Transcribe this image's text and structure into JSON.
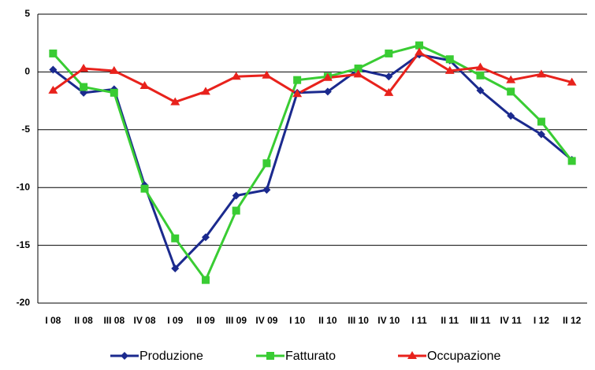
{
  "chart_data": {
    "type": "line",
    "categories": [
      "I 08",
      "II 08",
      "III 08",
      "IV 08",
      "I 09",
      "II 09",
      "III 09",
      "IV 09",
      "I 10",
      "II 10",
      "III 10",
      "IV 10",
      "I 11",
      "II 11",
      "III 11",
      "IV 11",
      "I 12",
      "II 12"
    ],
    "series": [
      {
        "name": "Produzione",
        "color": "#1b2a8e",
        "marker": "diamond",
        "values": [
          0.2,
          -1.8,
          -1.5,
          -9.8,
          -17,
          -14.3,
          -10.7,
          -10.2,
          -1.8,
          -1.7,
          0.2,
          -0.4,
          1.5,
          1.0,
          -1.6,
          -3.8,
          -5.4,
          -7.6
        ]
      },
      {
        "name": "Fatturato",
        "color": "#39cc33",
        "marker": "square",
        "values": [
          1.6,
          -1.3,
          -1.8,
          -10.1,
          -14.4,
          -18,
          -12,
          -7.9,
          -0.7,
          -0.4,
          0.3,
          1.6,
          2.3,
          1.1,
          -0.3,
          -1.7,
          -4.3,
          -7.7
        ]
      },
      {
        "name": "Occupazione",
        "color": "#e8221c",
        "marker": "triangle",
        "values": [
          -1.6,
          0.3,
          0.1,
          -1.2,
          -2.6,
          -1.7,
          -0.4,
          -0.3,
          -1.9,
          -0.5,
          -0.2,
          -1.8,
          1.7,
          0.1,
          0.4,
          -0.7,
          -0.2,
          -0.9
        ]
      }
    ],
    "ylim": [
      -20,
      5
    ],
    "yticks": [
      -20,
      -15,
      -10,
      -5,
      0,
      5
    ],
    "grid": true,
    "legend": "bottom"
  }
}
